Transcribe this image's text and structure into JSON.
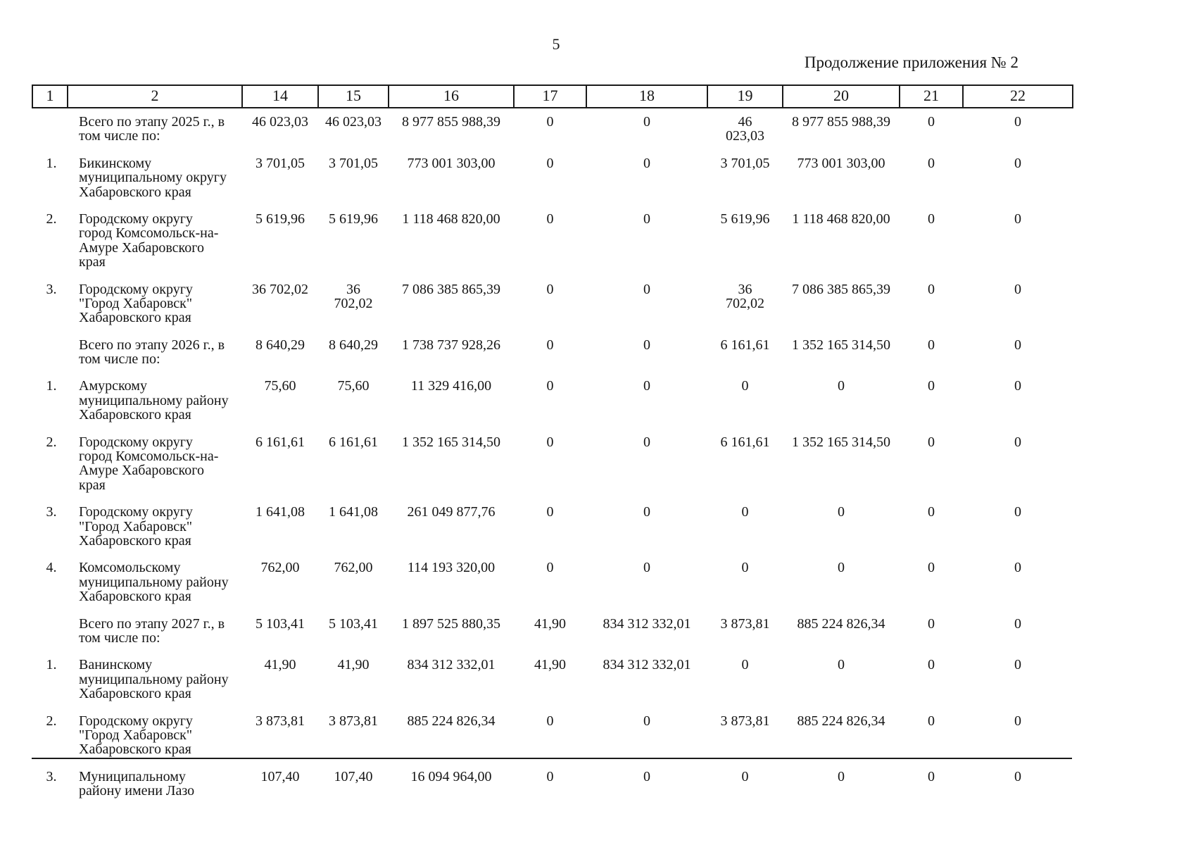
{
  "page": {
    "page_number": "5",
    "appendix_caption": "Продолжение приложения № 2"
  },
  "table": {
    "columns": [
      "1",
      "2",
      "14",
      "15",
      "16",
      "17",
      "18",
      "19",
      "20",
      "21",
      "22"
    ],
    "rows": [
      {
        "cells": [
          "",
          "Всего по этапу 2025 г., в том числе по:",
          "46 023,03",
          "46 023,03",
          "8 977 855 988,39",
          "0",
          "0",
          "46\n023,03",
          "8 977 855 988,39",
          "0",
          "0"
        ]
      },
      {
        "cells": [
          "1.",
          "Бикинскому муниципальному округу Хабаровского края",
          "3 701,05",
          "3 701,05",
          "773 001 303,00",
          "0",
          "0",
          "3 701,05",
          "773 001 303,00",
          "0",
          "0"
        ]
      },
      {
        "cells": [
          "2.",
          "Городскому округу город Комсомольск-на-Амуре Хабаровского края",
          "5 619,96",
          "5 619,96",
          "1 118 468 820,00",
          "0",
          "0",
          "5 619,96",
          "1 118 468 820,00",
          "0",
          "0"
        ]
      },
      {
        "cells": [
          "3.",
          "Городскому округу \"Город Хабаровск\" Хабаровского края",
          "36 702,02",
          "36\n702,02",
          "7 086 385 865,39",
          "0",
          "0",
          "36\n702,02",
          "7 086 385 865,39",
          "0",
          "0"
        ]
      },
      {
        "cells": [
          "",
          "Всего по этапу 2026 г., в том числе по:",
          "8 640,29",
          "8 640,29",
          "1 738 737 928,26",
          "0",
          "0",
          "6 161,61",
          "1 352 165 314,50",
          "0",
          "0"
        ]
      },
      {
        "cells": [
          "1.",
          "Амурскому муниципальному району Хабаровского края",
          "75,60",
          "75,60",
          "11 329 416,00",
          "0",
          "0",
          "0",
          "0",
          "0",
          "0"
        ]
      },
      {
        "cells": [
          "2.",
          "Городскому округу город Комсомольск-на-Амуре Хабаровского края",
          "6 161,61",
          "6 161,61",
          "1 352 165 314,50",
          "0",
          "0",
          "6 161,61",
          "1 352 165 314,50",
          "0",
          "0"
        ]
      },
      {
        "cells": [
          "3.",
          "Городскому округу \"Город Хабаровск\" Хабаровского края",
          "1 641,08",
          "1 641,08",
          "261 049 877,76",
          "0",
          "0",
          "0",
          "0",
          "0",
          "0"
        ]
      },
      {
        "cells": [
          "4.",
          "Комсомольскому муниципальному району Хабаровского края",
          "762,00",
          "762,00",
          "114 193 320,00",
          "0",
          "0",
          "0",
          "0",
          "0",
          "0"
        ]
      },
      {
        "cells": [
          "",
          "Всего по этапу 2027 г., в том числе по:",
          "5 103,41",
          "5 103,41",
          "1 897 525 880,35",
          "41,90",
          "834 312 332,01",
          "3 873,81",
          "885 224 826,34",
          "0",
          "0"
        ]
      },
      {
        "cells": [
          "1.",
          "Ванинскому муниципальному району Хабаровского края",
          "41,90",
          "41,90",
          "834 312 332,01",
          "41,90",
          "834 312 332,01",
          "0",
          "0",
          "0",
          "0"
        ]
      },
      {
        "cells": [
          "2.",
          "Городскому округу \"Город Хабаровск\" Хабаровского края",
          "3 873,81",
          "3 873,81",
          "885 224 826,34",
          "0",
          "0",
          "3 873,81",
          "885 224 826,34",
          "0",
          "0"
        ]
      },
      {
        "cells": [
          "3.",
          "Муниципальному району имени Лазо",
          "107,40",
          "107,40",
          "16 094 964,00",
          "0",
          "0",
          "0",
          "0",
          "0",
          "0"
        ]
      }
    ]
  }
}
